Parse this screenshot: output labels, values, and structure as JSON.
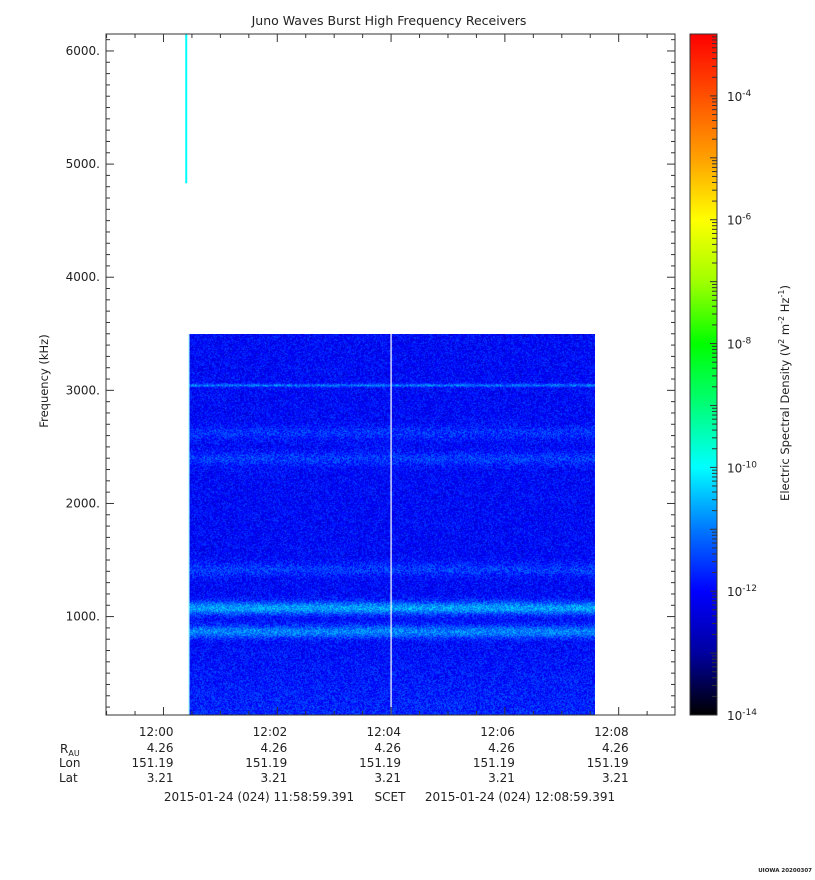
{
  "chart_data": {
    "type": "heatmap",
    "title": "Juno Waves Burst High Frequency Receivers",
    "ylabel": "Frequency (kHz)",
    "ylim": [
      130,
      6150
    ],
    "y_ticks": [
      {
        "value": 1000,
        "label": "1000."
      },
      {
        "value": 2000,
        "label": "2000."
      },
      {
        "value": 3000,
        "label": "3000."
      },
      {
        "value": 4000,
        "label": "4000."
      },
      {
        "value": 5000,
        "label": "5000."
      },
      {
        "value": 6000,
        "label": "6000."
      }
    ],
    "x_range": [
      "2015-01-24T11:58:59.391",
      "2015-01-24T12:08:59.391"
    ],
    "x_ticks": [
      {
        "time": "12:00",
        "label": "12:00",
        "r_au": "4.26",
        "lon": "151.19",
        "lat": "3.21"
      },
      {
        "time": "12:02",
        "label": "12:02",
        "r_au": "4.26",
        "lon": "151.19",
        "lat": "3.21"
      },
      {
        "time": "12:04",
        "label": "12:04",
        "r_au": "4.26",
        "lon": "151.19",
        "lat": "3.21"
      },
      {
        "time": "12:06",
        "label": "12:06",
        "r_au": "4.26",
        "lon": "151.19",
        "lat": "3.21"
      },
      {
        "time": "12:08",
        "label": "12:08",
        "r_au": "4.26",
        "lon": "151.19",
        "lat": "3.21"
      }
    ],
    "ephemeris_labels": {
      "r": "R",
      "r_sub": "AU",
      "lon": "Lon",
      "lat": "Lat"
    },
    "time_range_label": {
      "start": "2015-01-24 (024) 11:58:59.391",
      "middle": "SCET",
      "end": "2015-01-24 (024) 12:08:59.391"
    },
    "data_block": {
      "t_start": "12:00:26",
      "t_end": "12:07:35",
      "f_min": 130,
      "f_max": 3500,
      "background_level": 1e-12
    },
    "green_burst": {
      "time": "12:00:24",
      "f_min": 4830,
      "f_max": 6150,
      "level": 1e-10
    },
    "bands": [
      {
        "freq": 3050,
        "level": 1e-11
      },
      {
        "freq": 2400,
        "level": 3e-12
      },
      {
        "freq": 2630,
        "level": 2.5e-12
      },
      {
        "freq": 1080,
        "level": 2e-11
      },
      {
        "freq": 870,
        "level": 1.2e-11
      },
      {
        "freq": 1420,
        "level": 3e-12
      }
    ],
    "vertical_lines": [
      "12:04:00"
    ],
    "colorbar": {
      "label_main": "Electric Spectral Density (V",
      "label_sup1": "2",
      "label_mid1": " m",
      "label_sup2": "-2",
      "label_mid2": " Hz",
      "label_sup3": "-1",
      "label_end": ")",
      "range": [
        1e-14,
        0.001
      ],
      "scale": "log",
      "ticks": [
        {
          "exp": -14,
          "base": "10",
          "sup": "-14"
        },
        {
          "exp": -12,
          "base": "10",
          "sup": "-12"
        },
        {
          "exp": -10,
          "base": "10",
          "sup": "-10"
        },
        {
          "exp": -8,
          "base": "10",
          "sup": "-8"
        },
        {
          "exp": -6,
          "base": "10",
          "sup": "-6"
        },
        {
          "exp": -4,
          "base": "10",
          "sup": "-4"
        }
      ],
      "colormap": [
        "#000000",
        "#0000a0",
        "#0000ff",
        "#0078ff",
        "#00ffff",
        "#00ff78",
        "#00ff00",
        "#a0ff00",
        "#ffff00",
        "#ffa000",
        "#ff5000",
        "#ff0000"
      ]
    },
    "grid": false
  },
  "footer_stamp": "UIOWA 20200307"
}
